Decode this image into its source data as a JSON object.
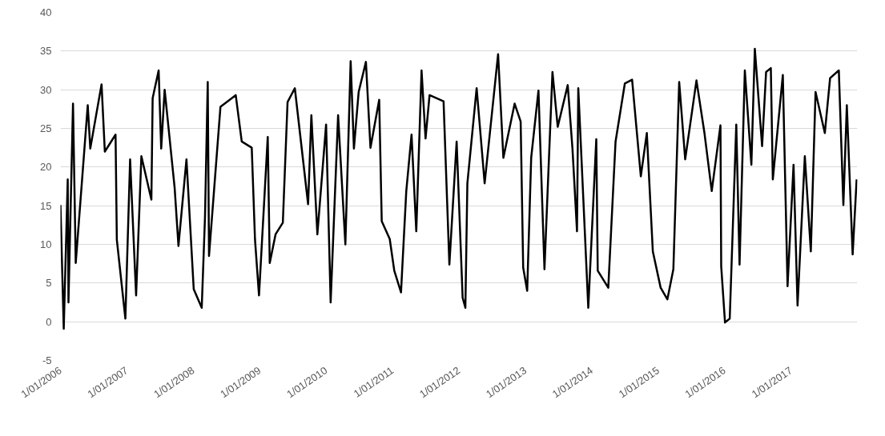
{
  "chart_data": {
    "type": "line",
    "xlim": [
      "2006-01-01",
      "2018-01-01"
    ],
    "ylim": [
      -5,
      40
    ],
    "yticks": [
      -5,
      0,
      5,
      10,
      15,
      20,
      25,
      30,
      35,
      40
    ],
    "xticks": [
      {
        "value": "2006-01-01",
        "label": "1/01/2006"
      },
      {
        "value": "2007-01-01",
        "label": "1/01/2007"
      },
      {
        "value": "2008-01-01",
        "label": "1/01/2008"
      },
      {
        "value": "2009-01-01",
        "label": "1/01/2009"
      },
      {
        "value": "2010-01-01",
        "label": "1/01/2010"
      },
      {
        "value": "2011-01-01",
        "label": "1/01/2011"
      },
      {
        "value": "2012-01-01",
        "label": "1/01/2012"
      },
      {
        "value": "2013-01-01",
        "label": "1/01/2013"
      },
      {
        "value": "2014-01-01",
        "label": "1/01/2014"
      },
      {
        "value": "2015-01-01",
        "label": "1/01/2015"
      },
      {
        "value": "2016-01-01",
        "label": "1/01/2016"
      },
      {
        "value": "2017-01-01",
        "label": "1/01/2017"
      }
    ],
    "grid": "y",
    "marker": "none",
    "line_style": "solid",
    "x": [
      "2006-01-01",
      "2006-01-19",
      "2006-02-10",
      "2006-02-14",
      "2006-03-11",
      "2006-03-26",
      "2006-05-31",
      "2006-06-14",
      "2006-08-15",
      "2006-09-02",
      "2006-10-31",
      "2006-11-07",
      "2006-12-24",
      "2007-01-19",
      "2007-02-21",
      "2007-03-22",
      "2007-05-16",
      "2007-05-23",
      "2007-06-25",
      "2007-07-09",
      "2007-07-28",
      "2007-09-21",
      "2007-10-12",
      "2007-11-25",
      "2008-01-04",
      "2008-02-17",
      "2008-03-06",
      "2008-03-21",
      "2008-03-28",
      "2008-05-30",
      "2008-08-22",
      "2008-09-24",
      "2008-11-18",
      "2008-12-06",
      "2008-12-28",
      "2009-02-14",
      "2009-02-25",
      "2009-03-29",
      "2009-05-08",
      "2009-06-03",
      "2009-07-13",
      "2009-09-24",
      "2009-10-12",
      "2009-11-14",
      "2010-01-01",
      "2010-01-26",
      "2010-03-08",
      "2010-04-17",
      "2010-05-16",
      "2010-06-03",
      "2010-06-29",
      "2010-08-08",
      "2010-09-02",
      "2010-10-20",
      "2010-11-03",
      "2010-12-17",
      "2011-01-11",
      "2011-02-17",
      "2011-03-18",
      "2011-04-16",
      "2011-05-12",
      "2011-06-10",
      "2011-07-02",
      "2011-07-24",
      "2011-10-09",
      "2011-11-10",
      "2011-12-20",
      "2012-01-22",
      "2012-02-06",
      "2012-02-17",
      "2012-04-08",
      "2012-05-22",
      "2012-08-04",
      "2012-09-02",
      "2012-11-03",
      "2012-12-06",
      "2012-12-20",
      "2013-01-11",
      "2013-02-02",
      "2013-03-14",
      "2013-04-16",
      "2013-05-30",
      "2013-06-28",
      "2013-08-22",
      "2013-09-17",
      "2013-10-12",
      "2013-10-19",
      "2013-12-13",
      "2014-01-26",
      "2014-02-03",
      "2014-04-02",
      "2014-05-12",
      "2014-07-02",
      "2014-08-11",
      "2014-09-28",
      "2014-10-31",
      "2014-12-03",
      "2015-01-15",
      "2015-02-21",
      "2015-03-26",
      "2015-04-27",
      "2015-05-30",
      "2015-07-31",
      "2015-09-13",
      "2015-10-23",
      "2015-12-10",
      "2015-12-14",
      "2016-01-04",
      "2016-01-30",
      "2016-03-06",
      "2016-03-24",
      "2016-04-22",
      "2016-05-28",
      "2016-06-16",
      "2016-07-26",
      "2016-08-17",
      "2016-09-12",
      "2016-09-23",
      "2016-11-17",
      "2016-12-13",
      "2017-01-15",
      "2017-02-06",
      "2017-03-18",
      "2017-04-20",
      "2017-05-16",
      "2017-07-06",
      "2017-08-04",
      "2017-09-21",
      "2017-10-16",
      "2017-11-04",
      "2017-12-06",
      "2017-12-28"
    ],
    "series": [
      {
        "color": "#000000",
        "values": [
          15.1,
          -0.9,
          18.4,
          2.5,
          28.2,
          7.6,
          28,
          22.4,
          30.7,
          22,
          24.2,
          10.6,
          0.4,
          21,
          3.4,
          21.4,
          15.8,
          28.9,
          32.5,
          22.4,
          30,
          17.3,
          9.8,
          21,
          4.2,
          1.8,
          13.6,
          31,
          8.5,
          27.8,
          29.3,
          23.3,
          22.5,
          10.6,
          3.4,
          23.9,
          7.6,
          11.3,
          12.8,
          28.4,
          30.2,
          15.2,
          26.7,
          11.3,
          25.5,
          2.5,
          26.7,
          10,
          33.7,
          22.4,
          29.7,
          33.6,
          22.5,
          28.7,
          13,
          10.7,
          6.6,
          3.8,
          16.9,
          24.2,
          11.7,
          32.5,
          23.7,
          29.3,
          28.5,
          7.4,
          23.3,
          3.1,
          1.8,
          17.9,
          30.2,
          17.9,
          34.6,
          21.2,
          28.2,
          25.9,
          7,
          4,
          21.2,
          29.9,
          6.8,
          32.3,
          25.2,
          30.6,
          22.4,
          11.7,
          30.2,
          1.8,
          23.6,
          6.6,
          4.4,
          23.3,
          30.8,
          31.3,
          18.8,
          24.4,
          9.1,
          4.4,
          2.9,
          6.8,
          31,
          21,
          31.2,
          24.4,
          16.9,
          25.4,
          7.2,
          -0.1,
          0.4,
          25.5,
          7.4,
          32.5,
          20.3,
          35.3,
          22.7,
          32.3,
          32.8,
          18.4,
          31.9,
          4.6,
          20.3,
          2.1,
          21.4,
          9.1,
          29.7,
          24.4,
          31.5,
          32.5,
          15.1,
          28,
          8.7,
          18.4
        ]
      }
    ]
  }
}
